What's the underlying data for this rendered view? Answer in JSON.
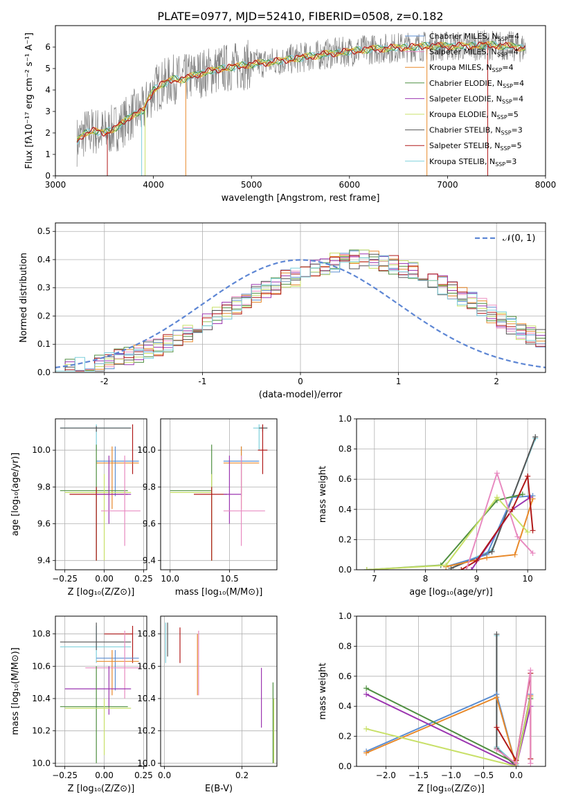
{
  "colors": {
    "c0": "#5a8dd1",
    "c1": "#e88ac0",
    "c2": "#e8892a",
    "c3": "#4f8f40",
    "c4": "#9b35b0",
    "c5": "#c8e068",
    "c6": "#555555",
    "c7": "#b01818",
    "c8": "#7dd0dc",
    "gray": "#808080",
    "norm": "#5d86d4"
  },
  "chart_data": [
    {
      "id": "spectrum",
      "type": "line",
      "title": "PLATE=0977, MJD=52410, FIBERID=0508, z=0.182",
      "xlabel": "wavelength [Angstrom, rest frame]",
      "ylabel": "Flux [fλ10⁻¹⁷ erg cm⁻² s⁻¹ A⁻¹]",
      "xlim": [
        3000,
        8000
      ],
      "ylim": [
        0,
        7
      ],
      "xticks": [
        3000,
        4000,
        5000,
        6000,
        7000,
        8000
      ],
      "yticks": [
        0,
        1,
        2,
        3,
        4,
        5,
        6
      ],
      "legend_placement": "top-right",
      "series": [
        {
          "name": "Chabrier MILES, N",
          "sub": "SSP",
          "val": "=4"
        },
        {
          "name": "Salpeter MILES, N",
          "sub": "SSP",
          "val": "=4"
        },
        {
          "name": "Kroupa MILES, N",
          "sub": "SSP",
          "val": "=4"
        },
        {
          "name": "Chabrier ELODIE, N",
          "sub": "SSP",
          "val": "=4"
        },
        {
          "name": "Salpeter ELODIE, N",
          "sub": "SSP",
          "val": "=4"
        },
        {
          "name": "Kroupa ELODIE, N",
          "sub": "SSP",
          "val": "=5"
        },
        {
          "name": "Chabrier STELIB, N",
          "sub": "SSP",
          "val": "=3"
        },
        {
          "name": "Salpeter STELIB, N",
          "sub": "SSP",
          "val": "=5"
        },
        {
          "name": "Kroupa STELIB, N",
          "sub": "SSP",
          "val": "=3"
        }
      ],
      "model_curve": {
        "wavelength": [
          3220,
          3300,
          3400,
          3500,
          3600,
          3700,
          3800,
          3900,
          3950,
          4000,
          4100,
          4200,
          4300,
          4500,
          4700,
          5000,
          5200,
          5500,
          5800,
          6000,
          6200,
          6400,
          6600,
          6800,
          7000,
          7200,
          7400,
          7600,
          7800
        ],
        "flux": [
          1.6,
          2.0,
          2.1,
          2.0,
          2.2,
          2.5,
          2.9,
          3.0,
          3.6,
          4.0,
          4.3,
          4.5,
          4.5,
          4.8,
          5.0,
          5.2,
          5.3,
          5.5,
          5.7,
          5.8,
          5.9,
          5.95,
          6.0,
          6.05,
          6.05,
          6.05,
          6.1,
          6.05,
          5.95
        ]
      },
      "data_noise_amplitude": 0.9
    },
    {
      "id": "residuals",
      "type": "line",
      "xlabel": "(data-model)/error",
      "ylabel": "Normed distribution",
      "xlim": [
        -2.5,
        2.5
      ],
      "ylim": [
        0,
        0.53
      ],
      "xticks": [
        -2,
        -1,
        0,
        1,
        2
      ],
      "yticks": [
        0.0,
        0.1,
        0.2,
        0.3,
        0.4,
        0.5
      ],
      "legend": "𝒩(0, 1)",
      "legend_placement": "top-right",
      "bin_width": 0.1,
      "bin_start": -2.5,
      "base_hist": [
        0.02,
        0.02,
        0.02,
        0.025,
        0.03,
        0.04,
        0.05,
        0.06,
        0.07,
        0.08,
        0.09,
        0.1,
        0.12,
        0.14,
        0.16,
        0.18,
        0.2,
        0.22,
        0.24,
        0.26,
        0.28,
        0.3,
        0.31,
        0.33,
        0.34,
        0.36,
        0.37,
        0.38,
        0.39,
        0.4,
        0.4,
        0.4,
        0.4,
        0.39,
        0.38,
        0.37,
        0.36,
        0.34,
        0.33,
        0.31,
        0.29,
        0.27,
        0.25,
        0.23,
        0.21,
        0.19,
        0.17,
        0.15,
        0.13,
        0.12,
        0.1
      ]
    },
    {
      "id": "age_vs_Z",
      "type": "scatter",
      "xlabel": "Z [log₁₀(Z/Z⊙)]",
      "ylabel": "age  [log₁₀(age/yr)]",
      "xlim": [
        -0.31,
        0.27
      ],
      "ylim": [
        9.35,
        10.17
      ],
      "xticks": [
        -0.25,
        0.0,
        0.25
      ],
      "xticklabels": [
        "−0.25",
        "0.00",
        "0.25"
      ],
      "yticks": [
        9.4,
        9.6,
        9.8,
        10.0
      ],
      "points": [
        {
          "s": 8,
          "x": -0.05,
          "y": 10.12,
          "xe": [
            -0.28,
            0.17
          ],
          "ye": [
            10.0,
            10.14
          ]
        },
        {
          "s": 6,
          "x": -0.05,
          "y": 10.12,
          "xe": [
            -0.28,
            0.17
          ],
          "ye": [
            10.1,
            10.13
          ]
        },
        {
          "s": 7,
          "x": 0.18,
          "y": 10.0,
          "xe": [
            0.18,
            0.18
          ],
          "ye": [
            9.87,
            10.14
          ]
        },
        {
          "s": 0,
          "x": 0.07,
          "y": 9.94,
          "xe": [
            -0.05,
            0.22
          ],
          "ye": [
            9.75,
            10.02
          ]
        },
        {
          "s": 2,
          "x": 0.05,
          "y": 9.93,
          "xe": [
            -0.05,
            0.22
          ],
          "ye": [
            9.68,
            10.02
          ]
        },
        {
          "s": 3,
          "x": -0.05,
          "y": 9.78,
          "xe": [
            -0.28,
            0.15
          ],
          "ye": [
            9.4,
            10.03
          ]
        },
        {
          "s": 5,
          "x": 0.0,
          "y": 9.77,
          "xe": [
            -0.25,
            0.17
          ],
          "ye": [
            9.4,
            9.87
          ]
        },
        {
          "s": 7,
          "x": -0.05,
          "y": 9.76,
          "xe": [
            -0.22,
            0.15
          ],
          "ye": [
            9.4,
            9.8
          ]
        },
        {
          "s": 4,
          "x": 0.03,
          "y": 9.76,
          "xe": [
            -0.05,
            0.17
          ],
          "ye": [
            9.6,
            9.97
          ]
        },
        {
          "s": 1,
          "x": 0.13,
          "y": 9.67,
          "xe": [
            -0.02,
            0.23
          ],
          "ye": [
            9.48,
            9.97
          ]
        }
      ]
    },
    {
      "id": "age_vs_mass",
      "type": "scatter",
      "xlabel": "mass [log₁₀(M/M⊙)]",
      "xlim": [
        9.92,
        10.9
      ],
      "ylim": [
        9.35,
        10.17
      ],
      "xticks": [
        10.0,
        10.5
      ],
      "yticks": [
        9.4,
        9.6,
        9.8,
        10.0
      ],
      "points": [
        {
          "s": 8,
          "x": 10.75,
          "y": 10.12,
          "xe": [
            10.7,
            10.82
          ],
          "ye": [
            10.0,
            10.14
          ]
        },
        {
          "s": 6,
          "x": 10.78,
          "y": 10.12,
          "xe": [
            10.75,
            10.82
          ],
          "ye": [
            10.1,
            10.13
          ]
        },
        {
          "s": 7,
          "x": 10.78,
          "y": 10.0,
          "xe": [
            10.74,
            10.82
          ],
          "ye": [
            9.87,
            10.14
          ]
        },
        {
          "s": 0,
          "x": 10.6,
          "y": 9.94,
          "xe": [
            10.45,
            10.75
          ],
          "ye": [
            9.75,
            10.02
          ]
        },
        {
          "s": 2,
          "x": 10.6,
          "y": 9.93,
          "xe": [
            10.45,
            10.75
          ],
          "ye": [
            9.68,
            10.02
          ]
        },
        {
          "s": 3,
          "x": 10.35,
          "y": 9.78,
          "xe": [
            10.0,
            10.35
          ],
          "ye": [
            9.4,
            10.03
          ]
        },
        {
          "s": 5,
          "x": 10.35,
          "y": 9.77,
          "xe": [
            10.0,
            10.35
          ],
          "ye": [
            9.4,
            9.87
          ]
        },
        {
          "s": 7,
          "x": 10.35,
          "y": 9.76,
          "xe": [
            10.2,
            10.48
          ],
          "ye": [
            9.4,
            9.8
          ]
        },
        {
          "s": 4,
          "x": 10.5,
          "y": 9.76,
          "xe": [
            10.45,
            10.6
          ],
          "ye": [
            9.6,
            9.97
          ]
        },
        {
          "s": 1,
          "x": 10.6,
          "y": 9.67,
          "xe": [
            10.45,
            10.8
          ],
          "ye": [
            9.48,
            9.97
          ]
        }
      ]
    },
    {
      "id": "massweight_vs_age",
      "type": "line",
      "xlabel": "age  [log₁₀(age/yr)]",
      "ylabel": "mass weight",
      "xlim": [
        6.65,
        10.35
      ],
      "ylim": [
        0,
        1
      ],
      "xticks": [
        7,
        8,
        9,
        10
      ],
      "yticks": [
        0.0,
        0.2,
        0.4,
        0.6,
        0.8,
        1.0
      ],
      "series": [
        {
          "s": 8,
          "x": [
            8.5,
            9.3,
            10.15
          ],
          "y": [
            0.01,
            0.13,
            0.87
          ]
        },
        {
          "s": 6,
          "x": [
            8.5,
            9.3,
            10.15
          ],
          "y": [
            0.01,
            0.12,
            0.88
          ]
        },
        {
          "s": 0,
          "x": [
            8.4,
            9.2,
            9.7,
            10.1
          ],
          "y": [
            0.02,
            0.1,
            0.48,
            0.49
          ]
        },
        {
          "s": 2,
          "x": [
            8.4,
            9.2,
            9.75,
            10.1
          ],
          "y": [
            0.02,
            0.08,
            0.1,
            0.47
          ]
        },
        {
          "s": 3,
          "x": [
            6.85,
            8.3,
            9.4,
            9.9
          ],
          "y": [
            0.0,
            0.03,
            0.46,
            0.5
          ]
        },
        {
          "s": 5,
          "x": [
            6.85,
            8.4,
            9.4,
            10.0
          ],
          "y": [
            0.0,
            0.03,
            0.48,
            0.25
          ]
        },
        {
          "s": 4,
          "x": [
            8.9,
            9.7,
            10.05
          ],
          "y": [
            0.0,
            0.4,
            0.48
          ]
        },
        {
          "s": 7,
          "x": [
            8.7,
            9.0,
            9.7,
            10.0,
            10.1
          ],
          "y": [
            0.0,
            0.06,
            0.4,
            0.62,
            0.26
          ]
        },
        {
          "s": 1,
          "x": [
            8.8,
            9.4,
            9.8,
            10.1
          ],
          "y": [
            0.0,
            0.64,
            0.22,
            0.11
          ]
        }
      ]
    },
    {
      "id": "mass_vs_Z",
      "type": "scatter",
      "xlabel": "Z [log₁₀(Z/Z⊙)]",
      "ylabel": "mass [log₁₀(M/M⊙)]",
      "xlim": [
        -0.31,
        0.27
      ],
      "ylim": [
        9.98,
        10.91
      ],
      "xticks": [
        -0.25,
        0.0,
        0.25
      ],
      "xticklabels": [
        "−0.25",
        "0.00",
        "0.25"
      ],
      "yticks": [
        10.0,
        10.2,
        10.4,
        10.6,
        10.8
      ],
      "points": [
        {
          "s": 8,
          "x": -0.05,
          "y": 10.72,
          "xe": [
            -0.28,
            0.17
          ],
          "ye": [
            10.62,
            10.85
          ]
        },
        {
          "s": 6,
          "x": -0.05,
          "y": 10.75,
          "xe": [
            -0.28,
            0.17
          ],
          "ye": [
            10.7,
            10.87
          ]
        },
        {
          "s": 7,
          "x": 0.18,
          "y": 10.8,
          "xe": [
            0.0,
            0.18
          ],
          "ye": [
            10.62,
            10.85
          ]
        },
        {
          "s": 0,
          "x": 0.07,
          "y": 10.65,
          "xe": [
            -0.05,
            0.22
          ],
          "ye": [
            10.45,
            10.7
          ]
        },
        {
          "s": 2,
          "x": 0.05,
          "y": 10.63,
          "xe": [
            -0.05,
            0.22
          ],
          "ye": [
            10.42,
            10.7
          ]
        },
        {
          "s": 1,
          "x": 0.13,
          "y": 10.59,
          "xe": [
            -0.12,
            0.23
          ],
          "ye": [
            10.4,
            10.82
          ]
        },
        {
          "s": 4,
          "x": 0.03,
          "y": 10.46,
          "xe": [
            -0.25,
            0.17
          ],
          "ye": [
            10.3,
            10.6
          ]
        },
        {
          "s": 3,
          "x": -0.05,
          "y": 10.35,
          "xe": [
            -0.28,
            0.15
          ],
          "ye": [
            10.0,
            10.6
          ]
        },
        {
          "s": 5,
          "x": 0.0,
          "y": 10.34,
          "xe": [
            -0.25,
            0.17
          ],
          "ye": [
            10.05,
            10.4
          ]
        }
      ]
    },
    {
      "id": "mass_vs_EBV",
      "type": "scatter",
      "xlabel": "E(B-V)",
      "xlim": [
        -0.01,
        0.29
      ],
      "ylim": [
        9.98,
        10.91
      ],
      "xticks": [
        0.0,
        0.2
      ],
      "yticks": [
        10.0,
        10.2,
        10.4,
        10.6,
        10.8
      ],
      "segments": [
        {
          "s": 8,
          "x": 0.003,
          "y": [
            10.62,
            10.87
          ]
        },
        {
          "s": 6,
          "x": 0.008,
          "y": [
            10.66,
            10.87
          ]
        },
        {
          "s": 7,
          "x": 0.04,
          "y": [
            10.62,
            10.84
          ]
        },
        {
          "s": 2,
          "x": 0.085,
          "y": [
            10.42,
            10.8
          ]
        },
        {
          "s": 1,
          "x": 0.088,
          "y": [
            10.42,
            10.82
          ]
        },
        {
          "s": 4,
          "x": 0.25,
          "y": [
            10.22,
            10.59
          ]
        },
        {
          "s": 3,
          "x": 0.28,
          "y": [
            10.0,
            10.5
          ]
        },
        {
          "s": 5,
          "x": 0.282,
          "y": [
            10.0,
            10.4
          ]
        }
      ]
    },
    {
      "id": "massweight_vs_Z",
      "type": "line",
      "xlabel": "Z [log₁₀(Z/Z⊙)]",
      "ylabel": "mass weight",
      "xlim": [
        -2.45,
        0.45
      ],
      "ylim": [
        0,
        1
      ],
      "xticks": [
        -2.0,
        -1.5,
        -1.0,
        -0.5,
        0.0
      ],
      "xticklabels": [
        "−2.0",
        "−1.5",
        "−1.0",
        "−0.5",
        "0.0"
      ],
      "yticks": [
        0.0,
        0.2,
        0.4,
        0.6,
        0.8,
        1.0
      ],
      "series": [
        {
          "s": 8,
          "x": [
            -0.3,
            -0.3,
            0.0
          ],
          "y": [
            0.87,
            0.13,
            0.01
          ]
        },
        {
          "s": 6,
          "x": [
            -0.3,
            -0.3,
            0.0
          ],
          "y": [
            0.88,
            0.12,
            0.0
          ]
        },
        {
          "s": 0,
          "x": [
            -2.3,
            -0.3,
            0.0,
            0.22
          ],
          "y": [
            0.1,
            0.48,
            0.0,
            0.48
          ]
        },
        {
          "s": 2,
          "x": [
            -2.3,
            -0.3,
            0.0,
            0.22
          ],
          "y": [
            0.09,
            0.46,
            0.0,
            0.47
          ]
        },
        {
          "s": 3,
          "x": [
            -2.3,
            0.0,
            0.22
          ],
          "y": [
            0.52,
            0.02,
            0.45
          ]
        },
        {
          "s": 4,
          "x": [
            -2.3,
            0.0,
            0.22
          ],
          "y": [
            0.48,
            0.0,
            0.4
          ]
        },
        {
          "s": 5,
          "x": [
            -2.3,
            0.0,
            0.22
          ],
          "y": [
            0.25,
            0.0,
            0.46
          ]
        },
        {
          "s": 7,
          "x": [
            -0.3,
            0.0,
            0.22,
            0.22
          ],
          "y": [
            0.26,
            0.04,
            0.62,
            0.05
          ]
        },
        {
          "s": 1,
          "x": [
            -0.3,
            0.0,
            0.22,
            0.22
          ],
          "y": [
            0.11,
            0.02,
            0.64,
            0.02
          ]
        }
      ]
    }
  ]
}
